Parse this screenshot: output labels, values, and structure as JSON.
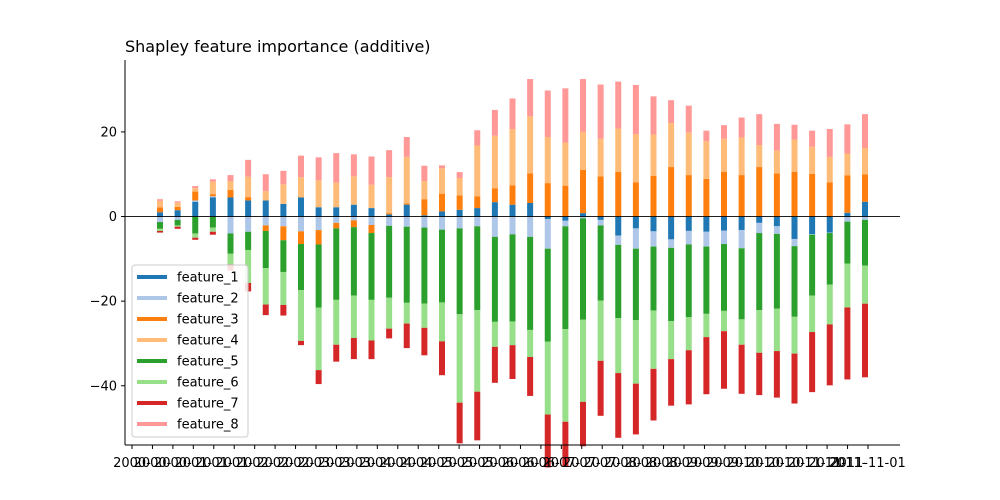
{
  "chart_data": {
    "type": "bar",
    "stacked": true,
    "title": "Shapley feature importance (additive)",
    "xlabel": "",
    "ylabel": "",
    "ylim": [
      -54,
      37
    ],
    "yticks": [
      -40,
      -20,
      0,
      20
    ],
    "x_tick_labels_visible": [
      "2000-",
      "2000-",
      "2000-",
      "2001-",
      "2001-",
      "2001-",
      "2002-",
      "2002-",
      "2002-",
      "2003-",
      "2003-",
      "2003-",
      "2004-",
      "2004-",
      "2004-",
      "2005-",
      "2005-",
      "2005-",
      "2006-",
      "2006-",
      "2006-",
      "2007-",
      "2007-",
      "2007-",
      "2008-",
      "2008-",
      "2008-",
      "2009-",
      "2009-",
      "2009-",
      "2010-",
      "2010-",
      "2010-",
      "2011-",
      "2011-",
      "2011-",
      "2011-11-01"
    ],
    "legend_position": "lower-left",
    "grid": false,
    "series": [
      {
        "name": "feature_1",
        "color": "#1f77b4",
        "values": [
          1.0,
          1.5,
          3.5,
          4.5,
          4.5,
          3.8,
          3.8,
          3.0,
          4.5,
          2.2,
          2.2,
          2.8,
          2.0,
          0.5,
          2.8,
          0.3,
          1.2,
          1.6,
          2.0,
          3.4,
          2.8,
          3.2,
          -0.6,
          -1.0,
          0.8,
          -0.8,
          -4.5,
          -2.8,
          -3.5,
          -5.4,
          -3.4,
          -3.6,
          -3.3,
          -3.2,
          -1.5,
          -2.3,
          -5.3,
          -4.2,
          -3.8,
          0.9,
          3.5
        ]
      },
      {
        "name": "feature_2",
        "color": "#aec7e8",
        "values": [
          -1.3,
          -0.8,
          0.3,
          0.3,
          -4.0,
          -3.6,
          -2.1,
          -2.3,
          -3.5,
          -3.2,
          -1.5,
          -0.9,
          -2.0,
          -2.2,
          -2.4,
          -2.6,
          -3.1,
          -2.8,
          -2.3,
          -4.8,
          -4.2,
          -4.8,
          -7.0,
          -1.3,
          -0.4,
          -1.3,
          -2.2,
          -4.8,
          -3.6,
          -2.0,
          -3.2,
          -3.5,
          -3.2,
          -4.3,
          -2.4,
          -1.8,
          -1.7,
          -0.1,
          -0.1,
          -1.2,
          -0.8
        ]
      },
      {
        "name": "feature_3",
        "color": "#ff7f0e",
        "values": [
          1.2,
          0.8,
          2.1,
          0.5,
          1.8,
          0.8,
          -1.3,
          -3.3,
          -3.0,
          -3.4,
          -1.3,
          -1.6,
          -1.9,
          0.3,
          0.3,
          3.8,
          4.2,
          3.4,
          2.8,
          3.3,
          4.6,
          7.0,
          7.9,
          7.3,
          10.2,
          9.5,
          10.6,
          8.1,
          9.6,
          11.7,
          9.8,
          8.9,
          10.6,
          9.8,
          11.7,
          10.2,
          10.6,
          10.1,
          8.1,
          8.8,
          6.5
        ]
      },
      {
        "name": "feature_4",
        "color": "#ffbb78",
        "values": [
          1.5,
          1.0,
          0.8,
          2.9,
          2.1,
          4.8,
          2.2,
          4.6,
          4.8,
          6.4,
          5.8,
          6.7,
          5.5,
          8.5,
          11.0,
          4.3,
          6.0,
          4.1,
          12.0,
          12.4,
          13.3,
          13.5,
          10.9,
          10.2,
          9.0,
          8.9,
          10.2,
          11.4,
          9.8,
          10.4,
          10.1,
          8.9,
          7.8,
          8.9,
          5.2,
          5.4,
          7.6,
          6.4,
          6.0,
          5.2,
          6.2
        ]
      },
      {
        "name": "feature_5",
        "color": "#2ca02c",
        "values": [
          -1.6,
          -1.3,
          -4.0,
          -2.6,
          -4.8,
          -4.3,
          -8.8,
          -7.5,
          -10.9,
          -14.9,
          -16.9,
          -16.2,
          -15.8,
          -17.0,
          -18.0,
          -18.0,
          -17.2,
          -20.3,
          -19.8,
          -20.1,
          -20.6,
          -22.0,
          -22.0,
          -24.3,
          -24.0,
          -17.8,
          -17.3,
          -16.9,
          -15.1,
          -17.3,
          -17.2,
          -15.9,
          -15.8,
          -16.8,
          -18.2,
          -17.7,
          -16.7,
          -14.4,
          -12.2,
          -9.9,
          -10.8
        ]
      },
      {
        "name": "feature_6",
        "color": "#98df8a",
        "values": [
          -0.5,
          -0.3,
          -1.0,
          -1.0,
          -2.5,
          -7.8,
          -8.6,
          -7.8,
          -12.0,
          -14.8,
          -10.6,
          -10.0,
          -9.6,
          -7.3,
          -4.9,
          -5.7,
          -9.2,
          -20.9,
          -19.3,
          -5.9,
          -5.6,
          -6.4,
          -17.2,
          -21.9,
          -19.4,
          -14.2,
          -13.0,
          -15.0,
          -13.8,
          -9.0,
          -7.8,
          -5.5,
          -4.8,
          -6.0,
          -10.1,
          -10.0,
          -8.7,
          -8.6,
          -9.4,
          -10.4,
          -9.0
        ]
      },
      {
        "name": "feature_7",
        "color": "#d62728",
        "values": [
          -0.4,
          -0.5,
          -0.5,
          -0.7,
          -1.5,
          -2.0,
          -2.5,
          -2.5,
          -1.0,
          -3.3,
          -4.0,
          -5.0,
          -4.4,
          -2.3,
          -5.8,
          -6.5,
          -8.0,
          -9.6,
          -11.5,
          -8.5,
          -8.0,
          -9.2,
          -12.5,
          -10.5,
          -10.5,
          -13.0,
          -15.3,
          -12.0,
          -12.2,
          -11.0,
          -12.8,
          -13.5,
          -13.6,
          -11.6,
          -10.0,
          -11.0,
          -11.8,
          -14.2,
          -14.4,
          -17.0,
          -17.4
        ]
      },
      {
        "name": "feature_8",
        "color": "#ff9896",
        "values": [
          0.4,
          0.3,
          0.5,
          0.6,
          1.4,
          4.0,
          4.0,
          3.2,
          5.1,
          5.4,
          7.0,
          5.2,
          6.7,
          6.4,
          4.7,
          3.6,
          0.7,
          1.4,
          3.6,
          6.1,
          7.2,
          8.8,
          11.0,
          12.8,
          12.5,
          12.8,
          11.1,
          11.6,
          9.0,
          5.4,
          6.3,
          2.5,
          3.2,
          4.7,
          7.3,
          6.3,
          3.5,
          3.8,
          6.6,
          6.9,
          8.0
        ]
      }
    ]
  }
}
